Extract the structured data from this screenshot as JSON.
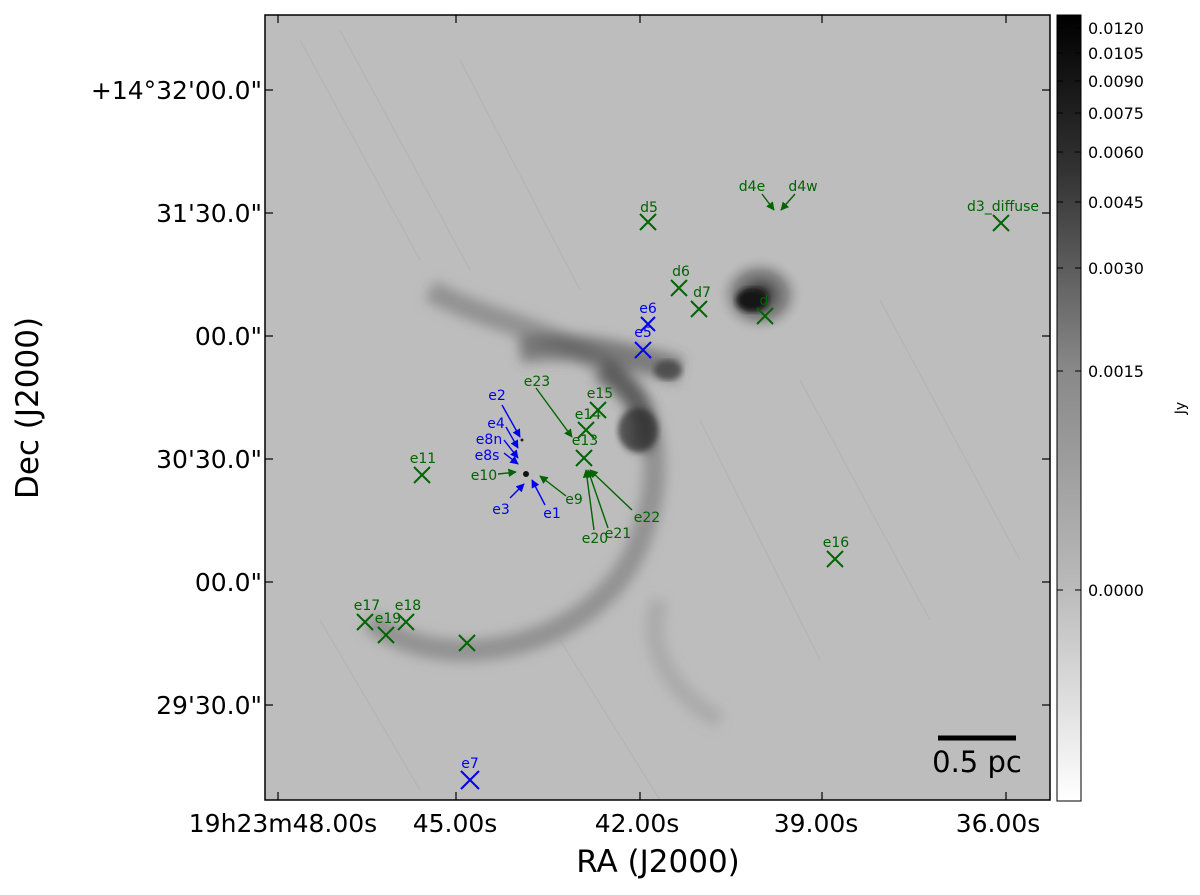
{
  "figure": {
    "x_axis_title": "RA (J2000)",
    "y_axis_title": "Dec (J2000)",
    "x_ticks": [
      "19h23m48.00s",
      "45.00s",
      "42.00s",
      "39.00s",
      "36.00s"
    ],
    "y_ticks": [
      "+14°32'00.0\"",
      "31'30.0\"",
      "00.0\"",
      "30'30.0\"",
      "00.0\"",
      "29'30.0\""
    ],
    "scale_bar_label": "0.5 pc"
  },
  "colorbar": {
    "unit_label": "Jy",
    "ticks": [
      "0.0120",
      "0.0105",
      "0.0090",
      "0.0075",
      "0.0060",
      "0.0045",
      "0.0030",
      "0.0015",
      "0.0000"
    ]
  },
  "colors": {
    "green_marker": "#006400",
    "blue_marker": "#0000ee",
    "background_gray": "#bdbdbd"
  },
  "markers_green": [
    "d5",
    "d6",
    "d7",
    "d",
    "d3_diffuse",
    "e11",
    "e12",
    "e13",
    "e14",
    "e15",
    "e16",
    "e17",
    "e18",
    "e19"
  ],
  "markers_blue": [
    "e6",
    "e5",
    "e7"
  ],
  "arrow_labels_green": [
    "d4e",
    "d4w",
    "e23",
    "e10",
    "e9",
    "e20",
    "e21",
    "e22"
  ],
  "arrow_labels_blue": [
    "e2",
    "e4",
    "e8n",
    "e8s",
    "e3",
    "e1"
  ]
}
